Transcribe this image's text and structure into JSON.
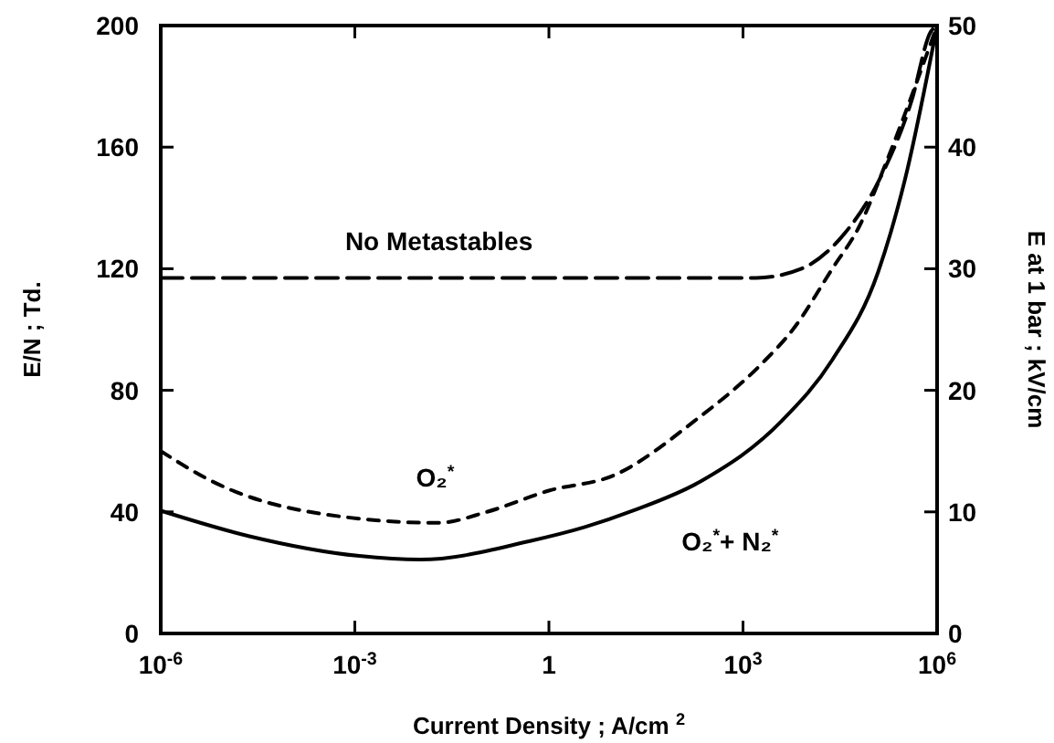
{
  "chart_data": {
    "type": "line",
    "xlabel": "Current Density ; A/cm $^{2}$",
    "ylabel": "E/N ;  Td.",
    "y2label": "E at 1 bar ;  kV/cm",
    "log": "x",
    "xlim": [
      1e-06,
      1000000.0
    ],
    "xticks": [
      {
        "value": 1e-06,
        "label": "10$^{-6}$"
      },
      {
        "value": 0.001,
        "label": "10$^{-3}$"
      },
      1,
      {
        "value": 1000,
        "label": "10$^{3}$"
      },
      {
        "value": 1000000,
        "label": "10$^{6}$"
      }
    ],
    "ylim": [
      0,
      200
    ],
    "yticks": [
      0,
      40,
      80,
      120,
      160,
      200
    ],
    "y2lim": [
      0,
      50
    ],
    "y2ticks": [
      0,
      10,
      20,
      30,
      40,
      50
    ],
    "grid": false,
    "marker": "none",
    "series": [
      {
        "name": "No Metastables",
        "color": "#000000",
        "line_style": "dashed",
        "x": [
          1e-06,
          0.001,
          1,
          1000,
          1600,
          8000,
          32000,
          126000,
          400000,
          800000,
          1000000
        ],
        "values": [
          117,
          117,
          117,
          117,
          117,
          120,
          130,
          149,
          175,
          198,
          200
        ]
      },
      {
        "name": "O₂$^{*}$",
        "color": "#000000",
        "line_style": "dotted",
        "x": [
          1e-06,
          6.3e-06,
          0.0002,
          0.0195,
          0.11,
          1,
          10,
          180,
          2000,
          5900,
          24000,
          63000,
          178000,
          1000000
        ],
        "values": [
          60,
          50,
          40,
          36.4,
          40,
          47,
          52,
          70,
          89,
          100,
          120,
          134,
          157,
          200
        ]
      },
      {
        "name": "O₂$^{*}$+ N₂$^{*}$",
        "color": "#000000",
        "line_style": "solid",
        "x": [
          1e-06,
          2.34e-05,
          0.00117,
          0.0102,
          0.51,
          3.6,
          20,
          220,
          4000,
          24000,
          123000,
          316000,
          1000000
        ],
        "values": [
          40.4,
          32,
          25.5,
          24.3,
          30.4,
          35,
          40.4,
          50,
          70,
          90,
          119,
          149,
          200
        ]
      }
    ]
  }
}
